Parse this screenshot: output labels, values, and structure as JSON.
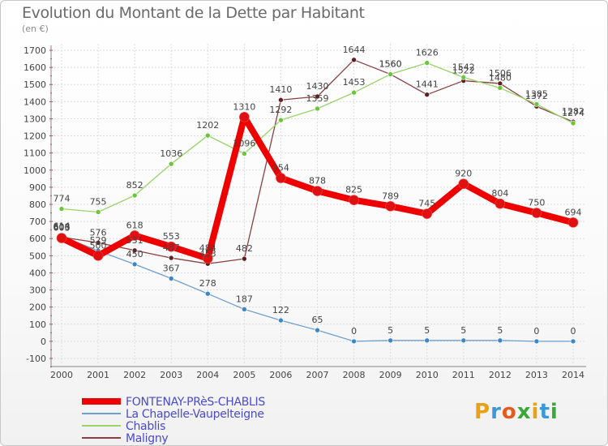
{
  "title": "Evolution du Montant de la Dette par Habitant",
  "unit": "(en €)",
  "logo": {
    "text": "Proxiti",
    "colors": [
      "#e8a21a",
      "#3a9ad9",
      "#e85a1a",
      "#3aa83a",
      "#e8a21a",
      "#3a9ad9",
      "#3aa83a"
    ]
  },
  "chart_data": {
    "type": "line",
    "title": "Evolution du Montant de la Dette par Habitant",
    "ylabel": "(en €)",
    "ylim": [
      -100,
      1700
    ],
    "yticks": [
      -100,
      0,
      100,
      200,
      300,
      400,
      500,
      600,
      700,
      800,
      900,
      1000,
      1100,
      1200,
      1300,
      1400,
      1500,
      1600,
      1700
    ],
    "grid": true,
    "legend_position": "bottom-left",
    "x": [
      "2000",
      "2001",
      "2002",
      "2003",
      "2004",
      "2005",
      "2006",
      "2007",
      "2008",
      "2009",
      "2010",
      "2011",
      "2012",
      "2013",
      "2014"
    ],
    "series": [
      {
        "name": "FONTENAY-PRèS-CHABLIS",
        "color": "#ee0000",
        "marker": "#dd1111",
        "width": 8,
        "values": [
          603,
          500,
          618,
          553,
          484,
          1310,
          954,
          878,
          825,
          789,
          745,
          920,
          804,
          750,
          694
        ]
      },
      {
        "name": "La Chapelle-Vaupelteigne",
        "color": "#6f9fcf",
        "marker": "#3b87c7",
        "width": 1.3,
        "values": [
          614,
          529,
          450,
          367,
          278,
          187,
          122,
          65,
          0,
          5,
          5,
          5,
          5,
          0,
          0
        ]
      },
      {
        "name": "Chablis",
        "color": "#9ad36a",
        "marker": "#6cc43a",
        "width": 1.3,
        "values": [
          774,
          755,
          852,
          1036,
          1202,
          1096,
          1292,
          1359,
          1453,
          1560,
          1626,
          1542,
          1480,
          1385,
          1274
        ]
      },
      {
        "name": "Maligny",
        "color": "#8a4040",
        "marker": "#5e1f1f",
        "width": 1.3,
        "values": [
          608,
          576,
          531,
          487,
          453,
          482,
          1410,
          1430,
          1644,
          1560,
          1441,
          1522,
          1506,
          1372,
          1282
        ]
      }
    ]
  }
}
